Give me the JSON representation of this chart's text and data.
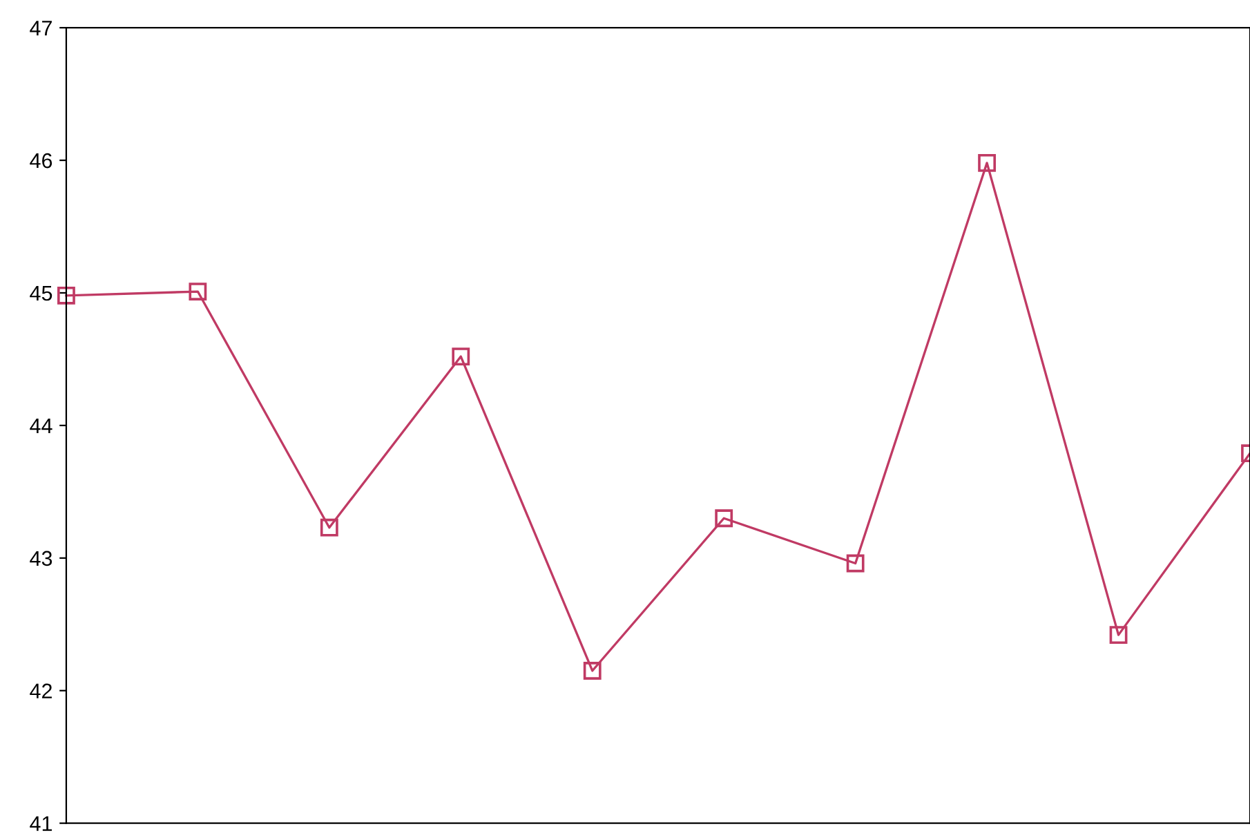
{
  "chart_data": {
    "type": "line",
    "categories": [
      null,
      null,
      null,
      null,
      null,
      null,
      null,
      null,
      null,
      null
    ],
    "series": [
      {
        "color": "#c03a64",
        "values": [
          44.98,
          45.01,
          43.23,
          44.52,
          42.15,
          43.3,
          42.96,
          45.98,
          42.42,
          43.79
        ]
      }
    ],
    "ylim": [
      41,
      47
    ],
    "yticks": [
      41,
      42,
      43,
      44,
      45,
      46,
      47
    ],
    "grid": false,
    "marker": "square",
    "line_style": "solid",
    "tick_labels": "y"
  }
}
